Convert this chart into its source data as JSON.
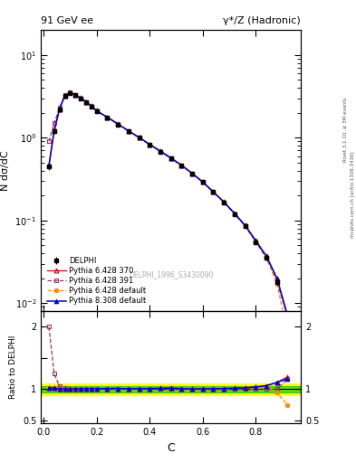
{
  "title_left": "91 GeV ee",
  "title_right": "γ*/Z (Hadronic)",
  "ylabel_main": "N dσ/dC",
  "ylabel_ratio": "Ratio to DELPHI",
  "xlabel": "C",
  "watermark": "DELPHI_1996_S3430090",
  "right_label1": "Rivet 3.1.10, ≥ 3M events",
  "right_label2": "mcplots.cern.ch [arXiv:1306.3436]",
  "C_centers": [
    0.02,
    0.04,
    0.06,
    0.08,
    0.1,
    0.12,
    0.14,
    0.16,
    0.18,
    0.2,
    0.24,
    0.28,
    0.32,
    0.36,
    0.4,
    0.44,
    0.48,
    0.52,
    0.56,
    0.6,
    0.64,
    0.68,
    0.72,
    0.76,
    0.8,
    0.84,
    0.88,
    0.92
  ],
  "delphi": [
    0.45,
    1.2,
    2.2,
    3.2,
    3.5,
    3.3,
    3.0,
    2.7,
    2.4,
    2.1,
    1.75,
    1.45,
    1.2,
    1.0,
    0.82,
    0.68,
    0.56,
    0.46,
    0.37,
    0.29,
    0.22,
    0.165,
    0.12,
    0.085,
    0.055,
    0.035,
    0.018,
    0.006
  ],
  "delphi_err": [
    0.04,
    0.08,
    0.1,
    0.12,
    0.12,
    0.1,
    0.09,
    0.08,
    0.07,
    0.06,
    0.05,
    0.04,
    0.04,
    0.03,
    0.025,
    0.02,
    0.018,
    0.015,
    0.012,
    0.01,
    0.008,
    0.006,
    0.005,
    0.004,
    0.003,
    0.002,
    0.0015,
    0.001
  ],
  "py6_370": [
    0.46,
    1.22,
    2.22,
    3.22,
    3.52,
    3.32,
    3.02,
    2.72,
    2.42,
    2.12,
    1.77,
    1.47,
    1.21,
    1.01,
    0.83,
    0.69,
    0.57,
    0.465,
    0.372,
    0.292,
    0.222,
    0.167,
    0.122,
    0.087,
    0.057,
    0.037,
    0.02,
    0.0072
  ],
  "py6_391": [
    0.9,
    1.5,
    2.3,
    3.25,
    3.51,
    3.31,
    3.01,
    2.71,
    2.41,
    2.11,
    1.76,
    1.46,
    1.2,
    1.0,
    0.82,
    0.68,
    0.56,
    0.46,
    0.37,
    0.29,
    0.22,
    0.165,
    0.12,
    0.085,
    0.055,
    0.035,
    0.018,
    0.007
  ],
  "py6_def": [
    0.46,
    1.22,
    2.22,
    3.22,
    3.52,
    3.32,
    3.02,
    2.72,
    2.42,
    2.12,
    1.77,
    1.47,
    1.21,
    1.01,
    0.83,
    0.69,
    0.57,
    0.465,
    0.372,
    0.292,
    0.222,
    0.167,
    0.122,
    0.087,
    0.057,
    0.037,
    0.017,
    0.0045
  ],
  "py8_def": [
    0.46,
    1.22,
    2.22,
    3.22,
    3.52,
    3.32,
    3.02,
    2.72,
    2.42,
    2.12,
    1.77,
    1.47,
    1.21,
    1.01,
    0.83,
    0.69,
    0.57,
    0.465,
    0.372,
    0.292,
    0.222,
    0.167,
    0.122,
    0.087,
    0.057,
    0.037,
    0.02,
    0.007
  ],
  "color_delphi": "#000000",
  "color_py6_370": "#cc0000",
  "color_py6_391": "#993366",
  "color_py6_def": "#ff8800",
  "color_py8_def": "#0000cc",
  "band_yellow": [
    0.9,
    1.1
  ],
  "band_green": [
    0.95,
    1.05
  ],
  "ylim_main": [
    0.008,
    20
  ],
  "ylim_ratio": [
    0.45,
    2.25
  ],
  "xlim": [
    -0.01,
    0.97
  ]
}
